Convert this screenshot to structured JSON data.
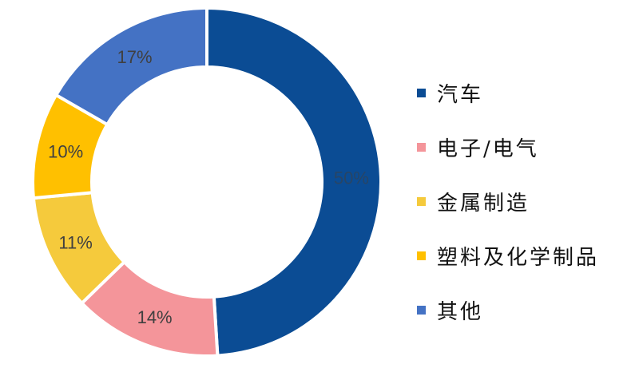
{
  "chart_data": {
    "type": "pie",
    "donut": true,
    "start": "top",
    "direction": "clockwise",
    "legend_position": "right",
    "categories": [
      "汽车",
      "电子/电气",
      "金属制造",
      "塑料及化学制品",
      "其他"
    ],
    "values": [
      50,
      14,
      11,
      10,
      17
    ],
    "data_labels": [
      "50%",
      "14%",
      "11%",
      "10%",
      "17%"
    ],
    "colors": [
      "#0B4C94",
      "#F4959A",
      "#F5CA3C",
      "#FFC000",
      "#4472C4"
    ],
    "legend_order": [
      0,
      1,
      3,
      2,
      4
    ]
  }
}
